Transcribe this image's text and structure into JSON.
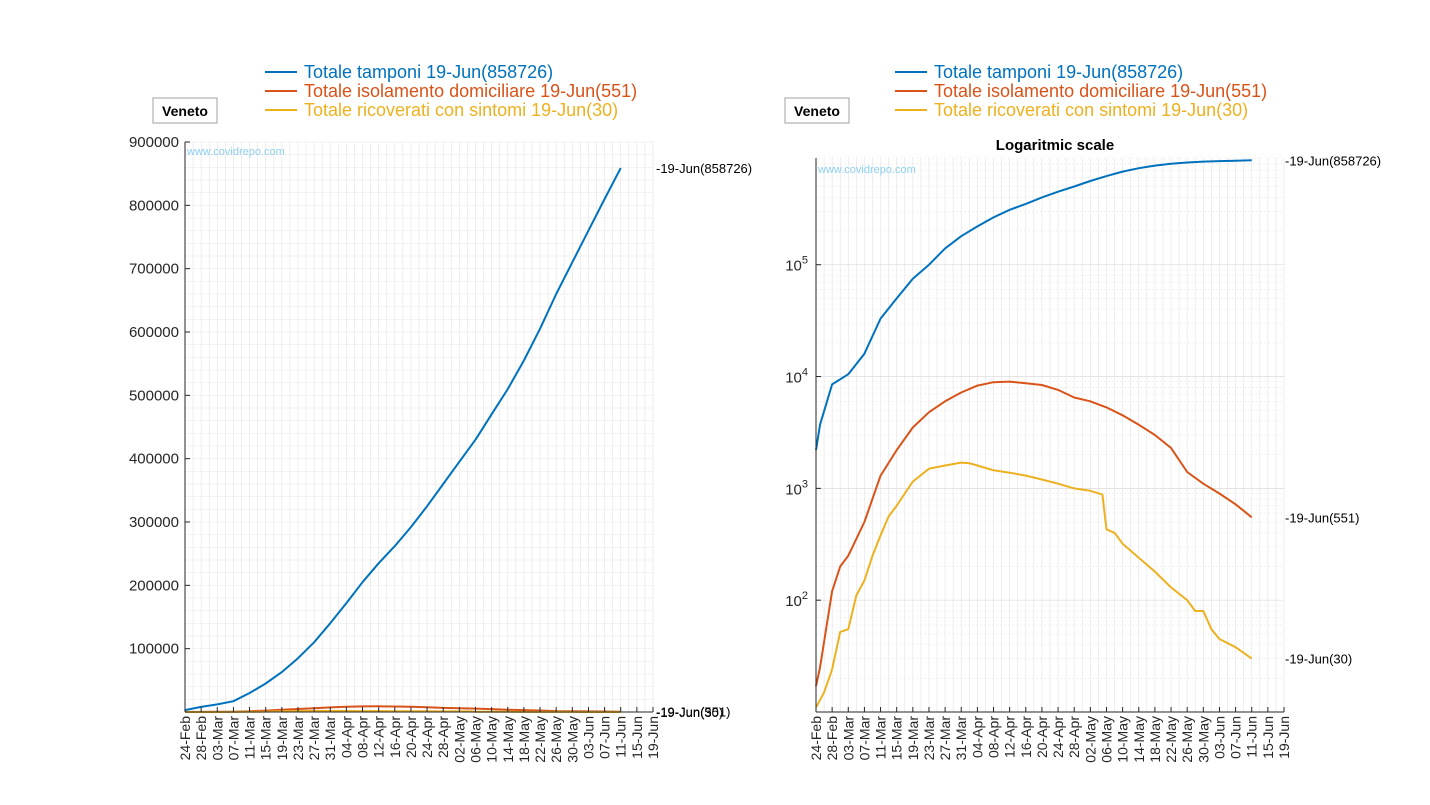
{
  "colors": {
    "tamponi": "#0072BD",
    "isolamento": "#D95319",
    "ricoverati": "#EDB120",
    "watermark": "#8ECFF0",
    "grid": "#e6e6e6",
    "axis": "#262626"
  },
  "chart_data": [
    {
      "type": "line",
      "region_label": "Veneto",
      "watermark": "www.covidrepo.com",
      "title": "",
      "xlabel": "",
      "ylabel": "",
      "yscale": "linear",
      "ylim": [
        0,
        900000
      ],
      "yticks": [
        100000,
        200000,
        300000,
        400000,
        500000,
        600000,
        700000,
        800000,
        900000
      ],
      "ytick_labels": [
        "100000",
        "200000",
        "300000",
        "400000",
        "500000",
        "600000",
        "700000",
        "800000",
        "900000"
      ],
      "xlim": [
        "24-Feb",
        "19-Jun"
      ],
      "xtick_labels": [
        "24-Feb",
        "28-Feb",
        "03-Mar",
        "07-Mar",
        "11-Mar",
        "15-Mar",
        "19-Mar",
        "23-Mar",
        "27-Mar",
        "31-Mar",
        "04-Apr",
        "08-Apr",
        "12-Apr",
        "16-Apr",
        "20-Apr",
        "24-Apr",
        "28-Apr",
        "02-May",
        "06-May",
        "10-May",
        "14-May",
        "18-May",
        "22-May",
        "26-May",
        "30-May",
        "03-Jun",
        "07-Jun",
        "11-Jun",
        "15-Jun",
        "19-Jun"
      ],
      "grid": true,
      "legend_position": "top",
      "series": [
        {
          "name": "Totale tamponi 19-Jun(858726)",
          "end_label": "19-Jun(858726)",
          "color_key": "tamponi",
          "points": [
            [
              0,
              3000
            ],
            [
              4,
              8000
            ],
            [
              8,
              12000
            ],
            [
              12,
              17000
            ],
            [
              16,
              30000
            ],
            [
              20,
              45000
            ],
            [
              24,
              63000
            ],
            [
              28,
              85000
            ],
            [
              32,
              110000
            ],
            [
              36,
              140000
            ],
            [
              40,
              172000
            ],
            [
              44,
              205000
            ],
            [
              48,
              235000
            ],
            [
              52,
              262000
            ],
            [
              56,
              292000
            ],
            [
              60,
              325000
            ],
            [
              64,
              360000
            ],
            [
              68,
              395000
            ],
            [
              72,
              430000
            ],
            [
              76,
              470000
            ],
            [
              80,
              510000
            ],
            [
              84,
              555000
            ],
            [
              88,
              605000
            ],
            [
              92,
              660000
            ],
            [
              96,
              710000
            ],
            [
              100,
              760000
            ],
            [
              104,
              810000
            ],
            [
              108,
              858726
            ]
          ]
        },
        {
          "name": "Totale isolamento domiciliare 19-Jun(551)",
          "end_label": "19-Jun(551)",
          "color_key": "isolamento",
          "points": [
            [
              0,
              20
            ],
            [
              4,
              150
            ],
            [
              8,
              250
            ],
            [
              12,
              500
            ],
            [
              16,
              1300
            ],
            [
              20,
              2200
            ],
            [
              24,
              3500
            ],
            [
              28,
              4800
            ],
            [
              32,
              6000
            ],
            [
              36,
              7200
            ],
            [
              40,
              8300
            ],
            [
              44,
              8900
            ],
            [
              48,
              9000
            ],
            [
              52,
              8700
            ],
            [
              56,
              8400
            ],
            [
              60,
              7600
            ],
            [
              64,
              6500
            ],
            [
              68,
              6000
            ],
            [
              72,
              5300
            ],
            [
              76,
              4500
            ],
            [
              80,
              3700
            ],
            [
              84,
              3000
            ],
            [
              88,
              2300
            ],
            [
              92,
              1400
            ],
            [
              96,
              1100
            ],
            [
              100,
              900
            ],
            [
              104,
              720
            ],
            [
              108,
              551
            ]
          ]
        },
        {
          "name": "Totale ricoverati con sintomi 19-Jun(30)",
          "end_label": "19-Jun(30)",
          "color_key": "ricoverati",
          "points": [
            [
              0,
              12
            ],
            [
              4,
              24
            ],
            [
              8,
              55
            ],
            [
              12,
              150
            ],
            [
              16,
              380
            ],
            [
              20,
              700
            ],
            [
              24,
              1150
            ],
            [
              28,
              1500
            ],
            [
              32,
              1600
            ],
            [
              36,
              1700
            ],
            [
              40,
              1650
            ],
            [
              44,
              1450
            ],
            [
              48,
              1380
            ],
            [
              52,
              1300
            ],
            [
              56,
              1200
            ],
            [
              60,
              1100
            ],
            [
              64,
              1000
            ],
            [
              68,
              950
            ],
            [
              71,
              880
            ],
            [
              72,
              430
            ],
            [
              76,
              320
            ],
            [
              80,
              240
            ],
            [
              84,
              180
            ],
            [
              88,
              130
            ],
            [
              92,
              100
            ],
            [
              96,
              80
            ],
            [
              100,
              55
            ],
            [
              104,
              40
            ],
            [
              108,
              30
            ]
          ]
        }
      ]
    },
    {
      "type": "line",
      "region_label": "Veneto",
      "watermark": "www.covidrepo.com",
      "title": "Logaritmic scale",
      "xlabel": "",
      "ylabel": "",
      "yscale": "log",
      "ylim": [
        10,
        900000
      ],
      "ytick_values": [
        100,
        1000,
        10000,
        100000
      ],
      "ytick_labels": [
        {
          "base": "10",
          "exp": "2"
        },
        {
          "base": "10",
          "exp": "3"
        },
        {
          "base": "10",
          "exp": "4"
        },
        {
          "base": "10",
          "exp": "5"
        }
      ],
      "xlim": [
        "24-Feb",
        "19-Jun"
      ],
      "xtick_labels": [
        "24-Feb",
        "28-Feb",
        "03-Mar",
        "07-Mar",
        "11-Mar",
        "15-Mar",
        "19-Mar",
        "23-Mar",
        "27-Mar",
        "31-Mar",
        "04-Apr",
        "08-Apr",
        "12-Apr",
        "16-Apr",
        "20-Apr",
        "24-Apr",
        "28-Apr",
        "02-May",
        "06-May",
        "10-May",
        "14-May",
        "18-May",
        "22-May",
        "26-May",
        "30-May",
        "03-Jun",
        "07-Jun",
        "11-Jun",
        "15-Jun",
        "19-Jun"
      ],
      "grid": true,
      "legend_position": "top",
      "series": [
        {
          "name": "Totale tamponi 19-Jun(858726)",
          "end_label": "19-Jun(858726)",
          "color_key": "tamponi",
          "points": [
            [
              0,
              2200
            ],
            [
              1,
              3700
            ],
            [
              4,
              8500
            ],
            [
              8,
              10500
            ],
            [
              12,
              16000
            ],
            [
              16,
              33000
            ],
            [
              20,
              50000
            ],
            [
              24,
              75000
            ],
            [
              28,
              100000
            ],
            [
              32,
              140000
            ],
            [
              36,
              180000
            ],
            [
              40,
              220000
            ],
            [
              44,
              265000
            ],
            [
              48,
              310000
            ],
            [
              52,
              350000
            ],
            [
              56,
              400000
            ],
            [
              60,
              450000
            ],
            [
              64,
              500000
            ],
            [
              68,
              560000
            ],
            [
              72,
              620000
            ],
            [
              76,
              680000
            ],
            [
              80,
              730000
            ],
            [
              84,
              770000
            ],
            [
              88,
              800000
            ],
            [
              92,
              820000
            ],
            [
              96,
              835000
            ],
            [
              100,
              845000
            ],
            [
              104,
              852000
            ],
            [
              108,
              858726
            ]
          ]
        },
        {
          "name": "Totale isolamento domiciliare 19-Jun(551)",
          "end_label": "19-Jun(551)",
          "color_key": "isolamento",
          "points": [
            [
              0,
              17
            ],
            [
              1,
              25
            ],
            [
              4,
              120
            ],
            [
              6,
              200
            ],
            [
              8,
              250
            ],
            [
              12,
              500
            ],
            [
              16,
              1300
            ],
            [
              20,
              2200
            ],
            [
              24,
              3500
            ],
            [
              28,
              4800
            ],
            [
              32,
              6000
            ],
            [
              36,
              7200
            ],
            [
              40,
              8300
            ],
            [
              44,
              8900
            ],
            [
              48,
              9000
            ],
            [
              52,
              8700
            ],
            [
              56,
              8400
            ],
            [
              60,
              7600
            ],
            [
              64,
              6500
            ],
            [
              68,
              6000
            ],
            [
              72,
              5300
            ],
            [
              76,
              4500
            ],
            [
              80,
              3700
            ],
            [
              84,
              3000
            ],
            [
              88,
              2300
            ],
            [
              92,
              1400
            ],
            [
              96,
              1100
            ],
            [
              100,
              900
            ],
            [
              104,
              720
            ],
            [
              108,
              551
            ]
          ]
        },
        {
          "name": "Totale ricoverati con sintomi 19-Jun(30)",
          "end_label": "19-Jun(30)",
          "color_key": "ricoverati",
          "points": [
            [
              0,
              11
            ],
            [
              2,
              15
            ],
            [
              4,
              24
            ],
            [
              6,
              52
            ],
            [
              8,
              55
            ],
            [
              10,
              110
            ],
            [
              12,
              150
            ],
            [
              14,
              250
            ],
            [
              16,
              380
            ],
            [
              18,
              560
            ],
            [
              20,
              700
            ],
            [
              22,
              900
            ],
            [
              24,
              1150
            ],
            [
              28,
              1500
            ],
            [
              32,
              1600
            ],
            [
              36,
              1700
            ],
            [
              38,
              1680
            ],
            [
              40,
              1600
            ],
            [
              44,
              1450
            ],
            [
              48,
              1380
            ],
            [
              52,
              1300
            ],
            [
              56,
              1200
            ],
            [
              60,
              1100
            ],
            [
              64,
              1000
            ],
            [
              68,
              950
            ],
            [
              71,
              880
            ],
            [
              72,
              430
            ],
            [
              74,
              400
            ],
            [
              76,
              320
            ],
            [
              80,
              240
            ],
            [
              84,
              180
            ],
            [
              88,
              130
            ],
            [
              92,
              100
            ],
            [
              94,
              80
            ],
            [
              96,
              80
            ],
            [
              98,
              55
            ],
            [
              100,
              45
            ],
            [
              104,
              38
            ],
            [
              108,
              30
            ]
          ]
        }
      ]
    }
  ]
}
